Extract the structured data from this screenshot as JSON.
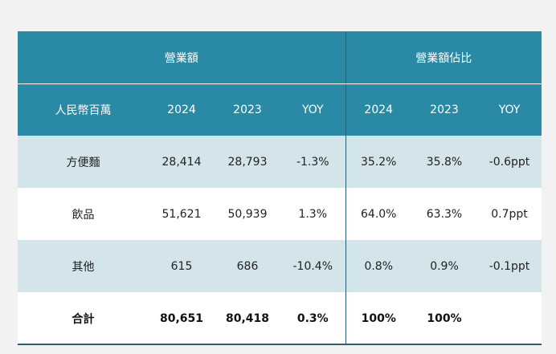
{
  "table": {
    "group_headers": [
      "營業額",
      "營業額佔比"
    ],
    "columns": [
      "人民幣百萬",
      "2024",
      "2023",
      "YOY",
      "2024",
      "2023",
      "YOY"
    ],
    "rows": [
      {
        "label": "方便麵",
        "cells": [
          "28,414",
          "28,793",
          "-1.3%",
          "35.2%",
          "35.8%",
          "-0.6ppt"
        ]
      },
      {
        "label": "飲品",
        "cells": [
          "51,621",
          "50,939",
          "1.3%",
          "64.0%",
          "63.3%",
          "0.7ppt"
        ]
      },
      {
        "label": "其他",
        "cells": [
          "615",
          "686",
          "-10.4%",
          "0.8%",
          "0.9%",
          "-0.1ppt"
        ]
      },
      {
        "label": "合計",
        "cells": [
          "80,651",
          "80,418",
          "0.3%",
          "100%",
          "100%",
          ""
        ]
      }
    ]
  },
  "colors": {
    "header_bg": "#2a8aa5",
    "band_bg": "#d3e4ea",
    "divider": "#245d6c"
  }
}
